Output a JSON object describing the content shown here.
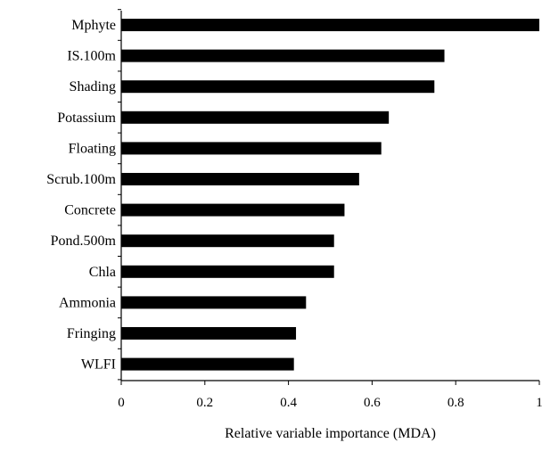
{
  "chart_data": {
    "type": "bar",
    "orientation": "horizontal",
    "title": "",
    "xlabel": "Relative variable importance (MDA)",
    "ylabel": "",
    "categories": [
      "Mphyte",
      "IS.100m",
      "Shading",
      "Potassium",
      "Floating",
      "Scrub.100m",
      "Concrete",
      "Pond.500m",
      "Chla",
      "Ammonia",
      "Fringing",
      "WLFI"
    ],
    "values": [
      1.0,
      0.773,
      0.749,
      0.64,
      0.622,
      0.569,
      0.534,
      0.509,
      0.509,
      0.442,
      0.418,
      0.413
    ],
    "xlim": [
      0,
      1
    ],
    "xticks": [
      "0",
      "0.2",
      "0.4",
      "0.6",
      "0.8",
      "1"
    ],
    "grid": false,
    "legend": "none",
    "bar_color": "#000000"
  }
}
